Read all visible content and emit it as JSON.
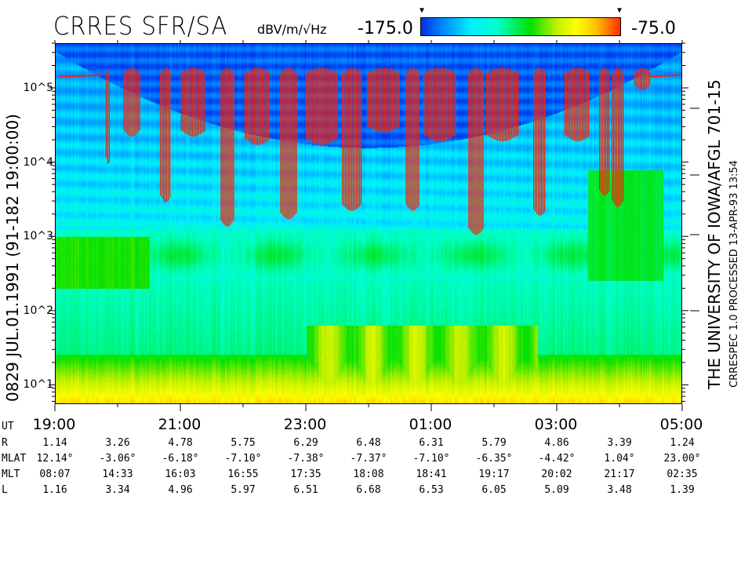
{
  "header": {
    "title": "CRRES SFR/SA",
    "units": "dBV/m/√Hz",
    "cmin_label": "-175.0",
    "cmax_label": "-75.0"
  },
  "left_label": "0829   JUL.01.1991   (91-182 19:00:00)",
  "right_label_1": "THE UNIVERSITY OF IOWA/AFGL 701-15",
  "right_label_2": "CRRESPEC 1.0   PROCESSED 13-APR-93   13:54",
  "chart_data": {
    "type": "heatmap",
    "title": "CRRES SFR/SA",
    "colorbar": {
      "label": "dBV/m/√Hz",
      "min": -175.0,
      "max": -75.0,
      "colors": [
        "#0030e0",
        "#00f0ff",
        "#00e000",
        "#ffff00",
        "#ff3000"
      ]
    },
    "y_axis": {
      "scale": "log",
      "unit": "Hz",
      "range": [
        5.5,
        400000
      ],
      "tick_labels": [
        "10^1",
        "10^2",
        "10^3",
        "10^4",
        "10^5"
      ],
      "ticks": [
        10,
        100,
        1000,
        10000,
        100000
      ]
    },
    "x_axis": {
      "range": [
        "19:00",
        "05:00"
      ],
      "tick_labels": [
        "19:00",
        "21:00",
        "23:00",
        "01:00",
        "03:00",
        "05:00"
      ]
    },
    "red_trace_bursts": [
      {
        "start": "19:49",
        "end": "19:53",
        "low_hz": 9300
      },
      {
        "start": "20:06",
        "end": "20:21",
        "low_hz": 22000
      },
      {
        "start": "20:41",
        "end": "20:51",
        "low_hz": 2900
      },
      {
        "start": "21:01",
        "end": "21:24",
        "low_hz": 22000
      },
      {
        "start": "21:39",
        "end": "21:51",
        "low_hz": 1350
      },
      {
        "start": "22:02",
        "end": "22:26",
        "low_hz": 17000
      },
      {
        "start": "22:36",
        "end": "22:51",
        "low_hz": 1700
      },
      {
        "start": "23:00",
        "end": "23:30",
        "low_hz": 17000
      },
      {
        "start": "23:35",
        "end": "23:53",
        "low_hz": 2200
      },
      {
        "start": "23:59",
        "end": "00:30",
        "low_hz": 25000
      },
      {
        "start": "00:36",
        "end": "00:49",
        "low_hz": 2200
      },
      {
        "start": "00:53",
        "end": "01:23",
        "low_hz": 19000
      },
      {
        "start": "01:36",
        "end": "01:50",
        "low_hz": 1050
      },
      {
        "start": "01:53",
        "end": "02:23",
        "low_hz": 19000
      },
      {
        "start": "02:38",
        "end": "02:50",
        "low_hz": 1900
      },
      {
        "start": "03:08",
        "end": "03:32",
        "low_hz": 19000
      },
      {
        "start": "03:41",
        "end": "03:51",
        "low_hz": 3500
      },
      {
        "start": "03:53",
        "end": "04:04",
        "low_hz": 2500
      },
      {
        "start": "04:14",
        "end": "04:30",
        "low_hz": 93000
      }
    ],
    "red_trace_top_hz": 160000,
    "red_color": "#ff2000"
  },
  "ephemeris": {
    "labels": [
      "UT",
      "R",
      "MLAT",
      "MLT",
      "L"
    ],
    "UT": [
      "19:00",
      "",
      "21:00",
      "",
      "23:00",
      "",
      "01:00",
      "",
      "03:00",
      "",
      "05:00"
    ],
    "R": [
      "1.14",
      "3.26",
      "4.78",
      "5.75",
      "6.29",
      "6.48",
      "6.31",
      "5.79",
      "4.86",
      "3.39",
      "1.24"
    ],
    "MLAT": [
      "12.14°",
      "-3.06°",
      "-6.18°",
      "-7.10°",
      "-7.38°",
      "-7.37°",
      "-7.10°",
      "-6.35°",
      "-4.42°",
      "1.04°",
      "23.00°"
    ],
    "MLT": [
      "08:07",
      "14:33",
      "16:03",
      "16:55",
      "17:35",
      "18:08",
      "18:41",
      "19:17",
      "20:02",
      "21:17",
      "02:35"
    ],
    "L": [
      "1.16",
      "3.34",
      "4.96",
      "5.97",
      "6.51",
      "6.68",
      "6.53",
      "6.05",
      "5.09",
      "3.48",
      "1.39"
    ]
  }
}
